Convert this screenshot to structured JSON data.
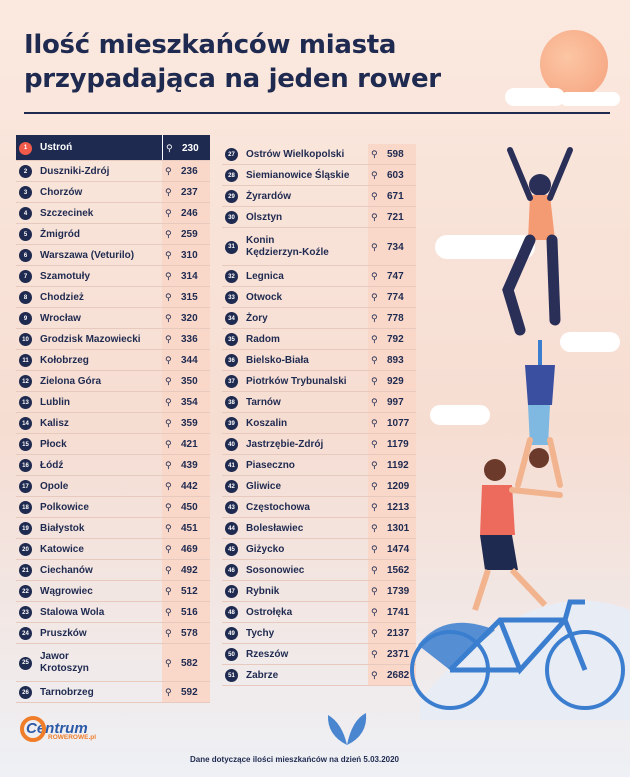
{
  "title_line1": "Ilość mieszkańców miasta",
  "title_line2": "przypadająca na jeden rower",
  "footer": "Dane dotyczące ilości mieszkańców na dzień 5.03.2020",
  "logo": {
    "main": "Centrum",
    "sub": "ROWEROWE.pl"
  },
  "colors": {
    "navy": "#1f2a50",
    "highlight": "#f25a4a",
    "value_bg": "#f9d8ca",
    "accent": "#f07d2a"
  },
  "left": [
    {
      "n": "1",
      "city": "Ustroń",
      "val": "230",
      "first": true
    },
    {
      "n": "2",
      "city": "Duszniki-Zdrój",
      "val": "236"
    },
    {
      "n": "3",
      "city": "Chorzów",
      "val": "237"
    },
    {
      "n": "4",
      "city": "Szczecinek",
      "val": "246"
    },
    {
      "n": "5",
      "city": "Żmigród",
      "val": "259"
    },
    {
      "n": "6",
      "city": "Warszawa  (Veturilo)",
      "val": "310"
    },
    {
      "n": "7",
      "city": "Szamotuły",
      "val": "314"
    },
    {
      "n": "8",
      "city": "Chodzież",
      "val": "315"
    },
    {
      "n": "9",
      "city": "Wrocław",
      "val": "320"
    },
    {
      "n": "10",
      "city": "Grodzisk Mazowiecki",
      "val": "336"
    },
    {
      "n": "11",
      "city": "Kołobrzeg",
      "val": "344"
    },
    {
      "n": "12",
      "city": "Zielona Góra",
      "val": "350"
    },
    {
      "n": "13",
      "city": "Lublin",
      "val": "354"
    },
    {
      "n": "14",
      "city": "Kalisz",
      "val": "359"
    },
    {
      "n": "15",
      "city": "Płock",
      "val": "421"
    },
    {
      "n": "16",
      "city": "Łódź",
      "val": "439"
    },
    {
      "n": "17",
      "city": "Opole",
      "val": "442"
    },
    {
      "n": "18",
      "city": "Polkowice",
      "val": "450"
    },
    {
      "n": "19",
      "city": "Białystok",
      "val": "451"
    },
    {
      "n": "20",
      "city": "Katowice",
      "val": "469"
    },
    {
      "n": "21",
      "city": "Ciechanów",
      "val": "492"
    },
    {
      "n": "22",
      "city": "Wągrowiec",
      "val": "512"
    },
    {
      "n": "23",
      "city": "Stalowa Wola",
      "val": "516"
    },
    {
      "n": "24",
      "city": "Pruszków",
      "val": "578"
    },
    {
      "n": "25",
      "city": "Jawor\nKrotoszyn",
      "val": "582",
      "tall": true
    },
    {
      "n": "26",
      "city": "Tarnobrzeg",
      "val": "592"
    }
  ],
  "right": [
    {
      "n": "27",
      "city": "Ostrów Wielkopolski",
      "val": "598"
    },
    {
      "n": "28",
      "city": "Siemianowice Śląskie",
      "val": "603"
    },
    {
      "n": "29",
      "city": "Żyrardów",
      "val": "671"
    },
    {
      "n": "30",
      "city": "Olsztyn",
      "val": "721"
    },
    {
      "n": "31",
      "city": "Konin\nKędzierzyn-Koźle",
      "val": "734",
      "tall": true
    },
    {
      "n": "32",
      "city": "Legnica",
      "val": "747"
    },
    {
      "n": "33",
      "city": "Otwock",
      "val": "774"
    },
    {
      "n": "34",
      "city": "Żory",
      "val": "778"
    },
    {
      "n": "35",
      "city": "Radom",
      "val": "792"
    },
    {
      "n": "36",
      "city": "Bielsko-Biała",
      "val": "893"
    },
    {
      "n": "37",
      "city": "Piotrków Trybunalski",
      "val": "929"
    },
    {
      "n": "38",
      "city": "Tarnów",
      "val": "997"
    },
    {
      "n": "39",
      "city": "Koszalin",
      "val": "1077"
    },
    {
      "n": "40",
      "city": "Jastrzębie-Zdrój",
      "val": "1179"
    },
    {
      "n": "41",
      "city": "Piaseczno",
      "val": "1192"
    },
    {
      "n": "42",
      "city": "Gliwice",
      "val": "1209"
    },
    {
      "n": "43",
      "city": "Częstochowa",
      "val": "1213"
    },
    {
      "n": "44",
      "city": "Bolesławiec",
      "val": "1301"
    },
    {
      "n": "45",
      "city": "Giżycko",
      "val": "1474"
    },
    {
      "n": "46",
      "city": "Sosonowiec",
      "val": "1562"
    },
    {
      "n": "47",
      "city": "Rybnik",
      "val": "1739"
    },
    {
      "n": "48",
      "city": "Ostrołęka",
      "val": "1741"
    },
    {
      "n": "49",
      "city": "Tychy",
      "val": "2137"
    },
    {
      "n": "50",
      "city": "Rzeszów",
      "val": "2371"
    },
    {
      "n": "51",
      "city": "Zabrze",
      "val": "2682"
    }
  ]
}
